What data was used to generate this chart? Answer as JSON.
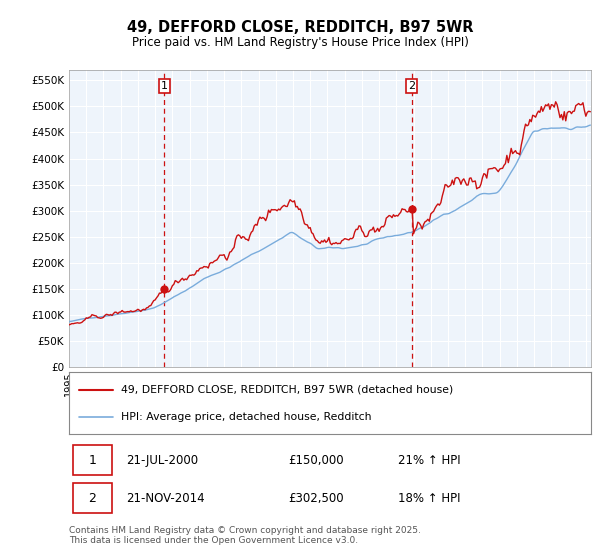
{
  "title": "49, DEFFORD CLOSE, REDDITCH, B97 5WR",
  "subtitle": "Price paid vs. HM Land Registry's House Price Index (HPI)",
  "background_color": "#ffffff",
  "chart_bg_color": "#eef4fb",
  "grid_color": "#ffffff",
  "ylim": [
    0,
    570000
  ],
  "yticks": [
    0,
    50000,
    100000,
    150000,
    200000,
    250000,
    300000,
    350000,
    400000,
    450000,
    500000,
    550000
  ],
  "ytick_labels": [
    "£0",
    "£50K",
    "£100K",
    "£150K",
    "£200K",
    "£250K",
    "£300K",
    "£350K",
    "£400K",
    "£450K",
    "£500K",
    "£550K"
  ],
  "line1_color": "#cc1111",
  "line2_color": "#7aacdc",
  "marker1_date": 2000.54,
  "marker1_value": 150000,
  "marker2_date": 2014.89,
  "marker2_value": 302500,
  "vline1_date": 2000.54,
  "vline2_date": 2014.89,
  "vline_color": "#cc1111",
  "legend_label1": "49, DEFFORD CLOSE, REDDITCH, B97 5WR (detached house)",
  "legend_label2": "HPI: Average price, detached house, Redditch",
  "table_row1": [
    "1",
    "21-JUL-2000",
    "£150,000",
    "21% ↑ HPI"
  ],
  "table_row2": [
    "2",
    "21-NOV-2014",
    "£302,500",
    "18% ↑ HPI"
  ],
  "footnote": "Contains HM Land Registry data © Crown copyright and database right 2025.\nThis data is licensed under the Open Government Licence v3.0.",
  "xmin": 1995.0,
  "xmax": 2025.3
}
